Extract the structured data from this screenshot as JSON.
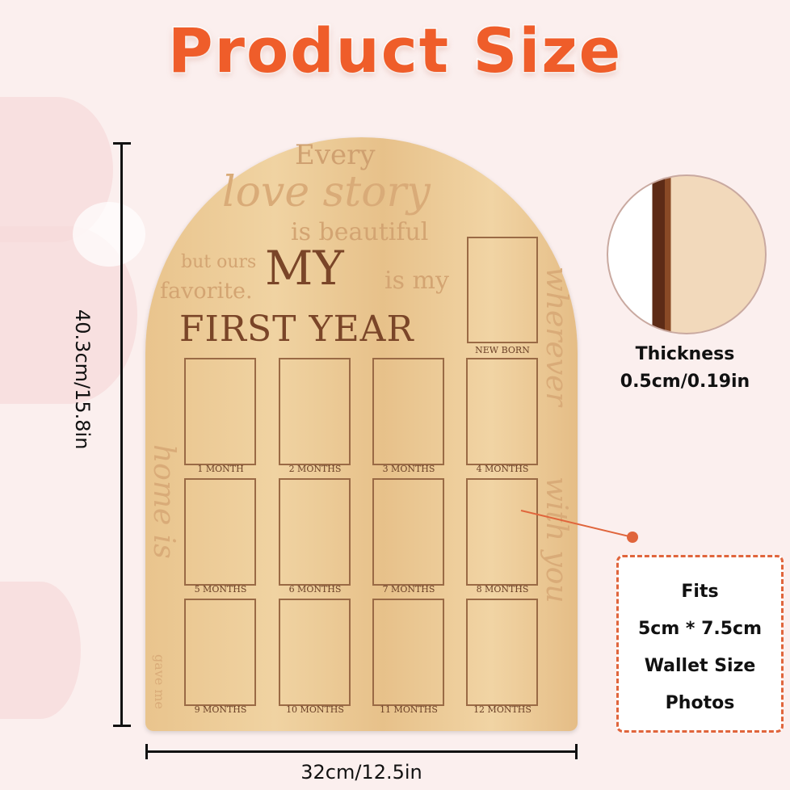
{
  "title": "Product Size",
  "colors": {
    "title": "#ef5d2a",
    "wood": "#e9c48d",
    "accent": "#e0653c"
  },
  "board": {
    "quote": [
      "Every",
      "love story",
      "is beautiful",
      "but ours",
      "favorite.",
      "is my"
    ],
    "heading_my": "MY",
    "heading_first_year": "FIRST YEAR",
    "side_left": [
      "home is",
      "gave me"
    ],
    "side_right": [
      "wherever",
      "with you"
    ],
    "newborn": "NEW BORN",
    "months": [
      "1 MONTH",
      "2 MONTHS",
      "3 MONTHS",
      "4 MONTHS",
      "5 MONTHS",
      "6 MONTHS",
      "7 MONTHS",
      "8 MONTHS",
      "9 MONTHS",
      "10 MONTHS",
      "11 MONTHS",
      "12 MONTHS"
    ]
  },
  "dimensions": {
    "height": "40.3cm/15.8in",
    "width": "32cm/12.5in"
  },
  "thickness": {
    "label": "Thickness",
    "value": "0.5cm/0.19in"
  },
  "fits": [
    "Fits",
    "5cm * 7.5cm",
    "Wallet Size",
    "Photos"
  ]
}
